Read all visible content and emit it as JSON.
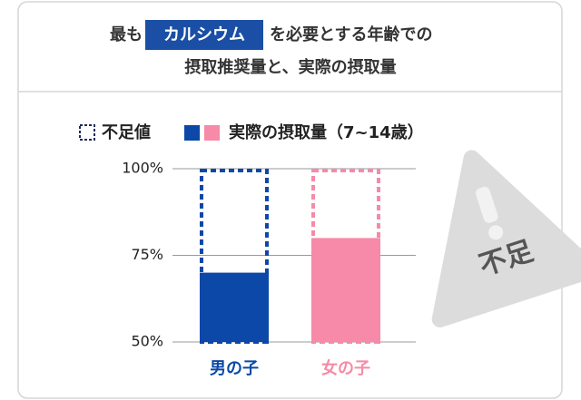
{
  "chart_data": {
    "type": "bar",
    "title_lead": "最も",
    "title_highlight": "カルシウム",
    "title_tail": "を必要とする年齢での",
    "subtitle": "摂取推奨量と、実際の摂取量",
    "categories": [
      "男の子",
      "女の子"
    ],
    "category_colors": [
      "#0b48a8",
      "#f68aa8"
    ],
    "series": [
      {
        "name": "不足値",
        "values": [
          100,
          100
        ],
        "style": "dashed"
      },
      {
        "name": "実際の摂取量（7~14歳）",
        "values": [
          70,
          80
        ],
        "style": "solid"
      }
    ],
    "ylim": [
      50,
      100
    ],
    "yticks": [
      {
        "value": 50,
        "label": "50%"
      },
      {
        "value": 75,
        "label": "75%"
      },
      {
        "value": 100,
        "label": "100%"
      }
    ],
    "grid": true,
    "annotation": "不足"
  }
}
